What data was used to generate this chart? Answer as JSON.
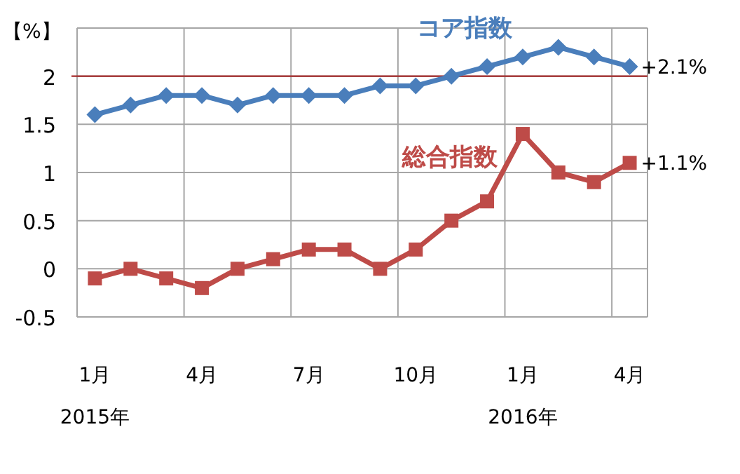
{
  "chart_data": {
    "type": "line",
    "ylabel": "【%】",
    "categories": [
      "1月\n2015年",
      null,
      null,
      "4月",
      null,
      null,
      "7月",
      null,
      null,
      "10月",
      null,
      null,
      "1月\n2016年",
      null,
      null,
      "4月"
    ],
    "series": [
      {
        "name": "コア指数",
        "color": "#4a7ebb",
        "marker": "diamond",
        "values": [
          1.6,
          1.7,
          1.8,
          1.8,
          1.7,
          1.8,
          1.8,
          1.8,
          1.9,
          1.9,
          2.0,
          2.1,
          2.2,
          2.3,
          2.2,
          2.1
        ],
        "value_labels": [
          null,
          null,
          null,
          null,
          null,
          null,
          null,
          null,
          null,
          null,
          null,
          null,
          null,
          null,
          null,
          "+2.1%"
        ]
      },
      {
        "name": "総合指数",
        "color": "#be4b48",
        "marker": "square",
        "values": [
          -0.1,
          0,
          -0.1,
          -0.2,
          0,
          0.1,
          0.2,
          0.2,
          0,
          0.2,
          0.5,
          0.7,
          1.4,
          1.0,
          0.9,
          1.1
        ],
        "value_labels": [
          null,
          null,
          null,
          null,
          null,
          null,
          null,
          null,
          null,
          null,
          null,
          null,
          null,
          null,
          null,
          "+1.1%"
        ]
      }
    ],
    "ylim": [
      -0.5,
      2.5
    ],
    "yticks": [
      -0.5,
      0,
      0.5,
      1,
      1.5,
      2,
      {
        "value": 2.5,
        "label": null
      }
    ],
    "grid": true,
    "line_style": "solid",
    "ref_lines": [
      {
        "axis": "y",
        "value": 2,
        "label": null,
        "color": "#a52a2a"
      }
    ]
  }
}
